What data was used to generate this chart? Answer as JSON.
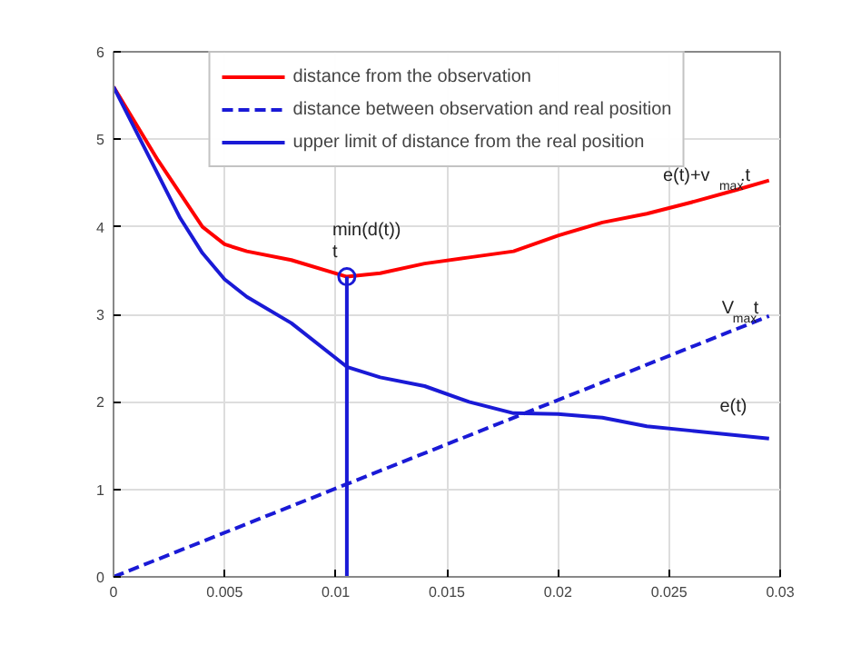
{
  "chart_data": {
    "type": "line",
    "xlim": [
      0,
      0.03
    ],
    "ylim": [
      0,
      6
    ],
    "xticks": [
      0,
      0.005,
      0.01,
      0.015,
      0.02,
      0.025,
      0.03
    ],
    "yticks": [
      0,
      1,
      2,
      3,
      4,
      5,
      6
    ],
    "grid": true,
    "legend": "top",
    "line_style": "solid",
    "series": [
      {
        "name": "distance from the observation",
        "color": "#ff0000",
        "x": [
          0,
          0.002,
          0.004,
          0.005,
          0.006,
          0.008,
          0.0105,
          0.012,
          0.014,
          0.016,
          0.018,
          0.02,
          0.022,
          0.024,
          0.026,
          0.028,
          0.0295
        ],
        "values": [
          5.6,
          4.76,
          4.0,
          3.8,
          3.72,
          3.62,
          3.43,
          3.47,
          3.58,
          3.65,
          3.72,
          3.9,
          4.05,
          4.15,
          4.28,
          4.42,
          4.53
        ]
      },
      {
        "name": "distance between observation and real position",
        "color": "#1a1ad6",
        "line_style": "dashed",
        "x": [
          0,
          0.0295
        ],
        "values": [
          0,
          2.98
        ]
      },
      {
        "name": "upper limit of distance from the real position",
        "color": "#1a1ad6",
        "x": [
          0,
          0.002,
          0.003,
          0.004,
          0.005,
          0.006,
          0.008,
          0.0105,
          0.012,
          0.014,
          0.016,
          0.018,
          0.02,
          0.022,
          0.024,
          0.026,
          0.0295
        ],
        "values": [
          5.6,
          4.6,
          4.1,
          3.7,
          3.4,
          3.2,
          2.9,
          2.4,
          2.28,
          2.18,
          2.0,
          1.87,
          1.86,
          1.82,
          1.72,
          1.67,
          1.58
        ]
      },
      {
        "color": "#1a1ad6",
        "x": [
          0.0105,
          0.0105
        ],
        "values": [
          0,
          3.43
        ]
      },
      {
        "type": "scatter",
        "marker": "circle",
        "color": "#1a1ad6",
        "x": [
          0.0105
        ],
        "values": [
          3.43
        ]
      }
    ],
    "annotations": [
      {
        "text": "min(d(t))",
        "x": 0.0105,
        "y": 3.43
      },
      {
        "text": "t",
        "x": 0.0105,
        "y": 3.43
      },
      {
        "text": "e(t)+v$_{max}$.t",
        "x": 0.0273,
        "y": 4.3
      },
      {
        "text": "V$_{max}$t",
        "x": 0.0275,
        "y": 2.78
      },
      {
        "text": "e(t)",
        "x": 0.0272,
        "y": 1.66
      }
    ]
  }
}
